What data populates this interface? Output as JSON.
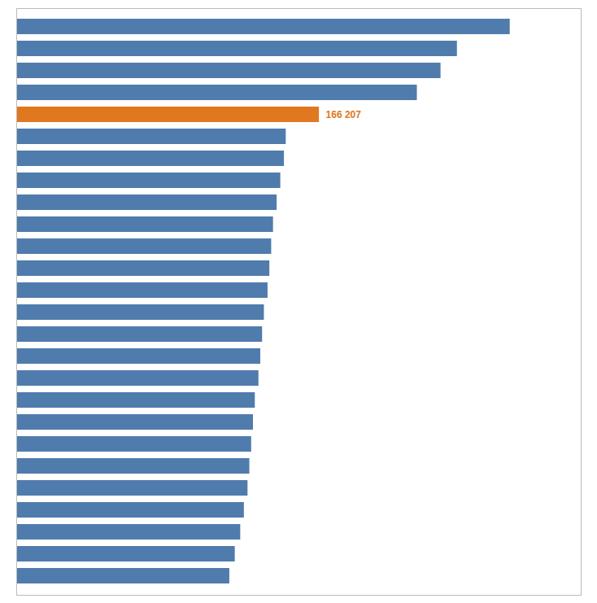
{
  "chart_data": {
    "type": "bar",
    "orientation": "horizontal",
    "categories": [
      null,
      null,
      null,
      null,
      null,
      null,
      null,
      null,
      null,
      null,
      null,
      null,
      null,
      null,
      null,
      null,
      null,
      null,
      null,
      null,
      null,
      null,
      null,
      null,
      null,
      null
    ],
    "values": [
      271000,
      242000,
      233000,
      220000,
      166207,
      148000,
      147000,
      145000,
      143000,
      141000,
      140000,
      139000,
      138000,
      136000,
      135000,
      134000,
      133000,
      131000,
      130000,
      129000,
      128000,
      127000,
      125000,
      123000,
      120000,
      117000
    ],
    "value_labels": [
      null,
      null,
      null,
      null,
      "166 207",
      null,
      null,
      null,
      null,
      null,
      null,
      null,
      null,
      null,
      null,
      null,
      null,
      null,
      null,
      null,
      null,
      null,
      null,
      null,
      null,
      null
    ],
    "colors": [
      "#4f7cac",
      "#4f7cac",
      "#4f7cac",
      "#4f7cac",
      "#e07820",
      "#4f7cac",
      "#4f7cac",
      "#4f7cac",
      "#4f7cac",
      "#4f7cac",
      "#4f7cac",
      "#4f7cac",
      "#4f7cac",
      "#4f7cac",
      "#4f7cac",
      "#4f7cac",
      "#4f7cac",
      "#4f7cac",
      "#4f7cac",
      "#4f7cac",
      "#4f7cac",
      "#4f7cac",
      "#4f7cac",
      "#4f7cac",
      "#4f7cac",
      "#4f7cac"
    ],
    "xlim": [
      0,
      310000
    ],
    "tick_labels": false,
    "grid": false
  }
}
